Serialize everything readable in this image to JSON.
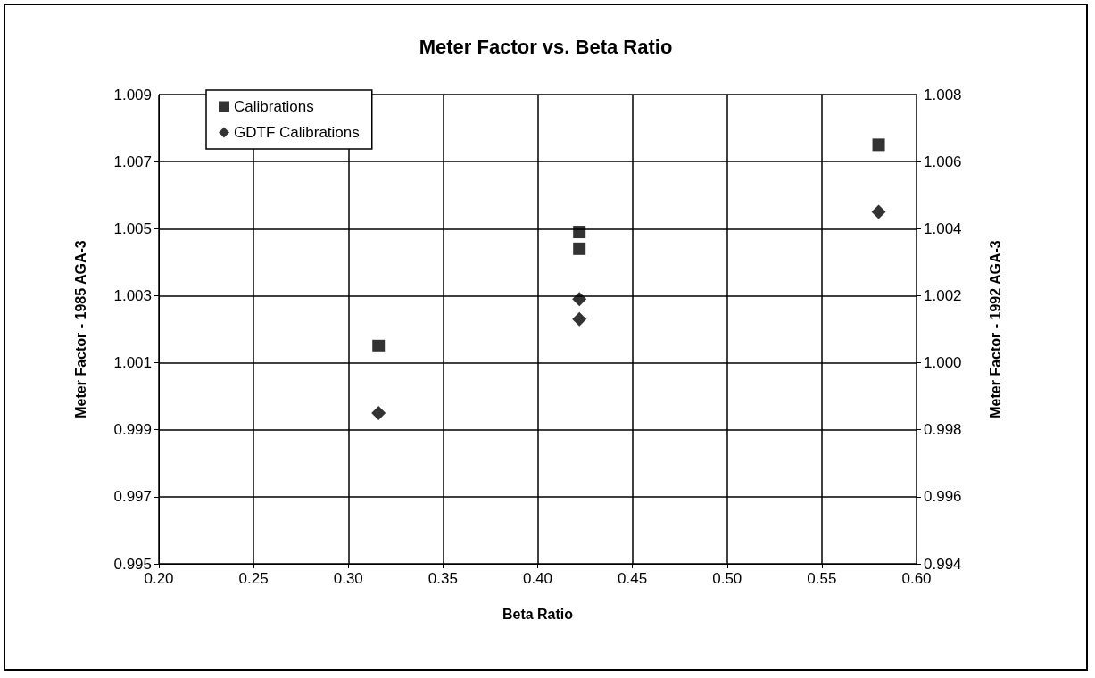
{
  "chart_data": {
    "type": "scatter",
    "title": "Meter Factor vs. Beta Ratio",
    "xlabel": "Beta Ratio",
    "ylabel": "Meter Factor - 1985 AGA-3",
    "y2label": "Meter Factor - 1992 AGA-3",
    "series": [
      {
        "name": "Calibrations",
        "color": "#000000",
        "marker": "square",
        "x": [
          0.316,
          0.422,
          0.422,
          0.58
        ],
        "values": [
          1.0015,
          1.0049,
          1.0044,
          1.0075
        ]
      },
      {
        "name": "GDTF Calibrations",
        "color": "#000000",
        "marker": "diamond",
        "x": [
          0.316,
          0.422,
          0.422,
          0.58
        ],
        "values": [
          0.9995,
          1.0029,
          1.0023,
          1.0055
        ]
      }
    ],
    "xlim": [
      0.2,
      0.6
    ],
    "xticks": [
      {
        "value": 0.2,
        "label": "0.20"
      },
      0.25,
      {
        "value": 0.3,
        "label": "0.30"
      },
      0.35,
      {
        "value": 0.4,
        "label": "0.40"
      },
      0.45,
      {
        "value": 0.5,
        "label": "0.50"
      },
      0.55,
      {
        "value": 0.6,
        "label": "0.60"
      }
    ],
    "ylim": [
      0.995,
      1.009
    ],
    "yticks": [
      0.995,
      0.997,
      0.999,
      1.001,
      1.003,
      1.005,
      1.007,
      1.009
    ],
    "y2lim": [
      0.994,
      1.008
    ],
    "y2ticks": [
      0.994,
      0.996,
      0.998,
      {
        "value": 1,
        "label": "1.000"
      },
      1.002,
      1.004,
      1.006,
      1.008
    ],
    "grid": true,
    "legend": "top left"
  }
}
